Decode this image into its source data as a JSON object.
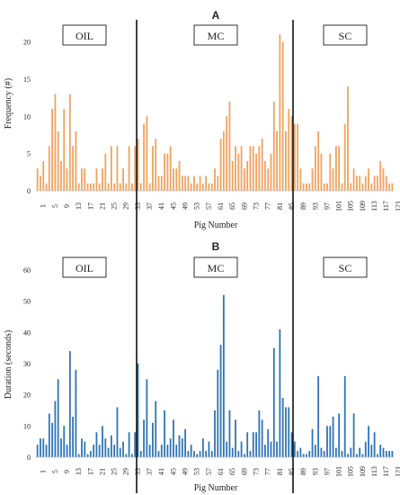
{
  "chart_data": [
    {
      "type": "bar",
      "panel_label": "A",
      "xlabel": "Pig Number",
      "ylabel": "Frequency (#)",
      "ylim": [
        0,
        22
      ],
      "yticks": [
        0,
        5,
        10,
        15,
        20
      ],
      "xtick_labels": [
        "1",
        "5",
        "9",
        "13",
        "17",
        "21",
        "25",
        "29",
        "33",
        "37",
        "41",
        "45",
        "49",
        "53",
        "57",
        "61",
        "65",
        "69",
        "73",
        "77",
        "81",
        "85",
        "89",
        "93",
        "97",
        "101",
        "105",
        "109",
        "113",
        "117",
        "121"
      ],
      "grid": false,
      "color": "#F0A35E",
      "group_labels": [
        "OIL",
        "MC",
        "SC"
      ],
      "x": [
        1,
        2,
        3,
        4,
        5,
        6,
        7,
        8,
        9,
        10,
        11,
        12,
        13,
        14,
        15,
        16,
        17,
        18,
        19,
        20,
        21,
        22,
        23,
        24,
        25,
        26,
        27,
        28,
        29,
        30,
        31,
        32,
        33,
        34,
        35,
        36,
        37,
        38,
        39,
        40,
        41,
        42,
        43,
        44,
        45,
        46,
        47,
        48,
        49,
        50,
        51,
        52,
        53,
        54,
        55,
        56,
        57,
        58,
        59,
        60,
        61,
        62,
        63,
        64,
        65,
        66,
        67,
        68,
        69,
        70,
        71,
        72,
        73,
        74,
        75,
        76,
        77,
        78,
        79,
        80,
        81,
        82,
        83,
        84,
        85,
        86,
        87,
        88,
        89,
        90,
        91,
        92,
        93,
        94,
        95,
        96,
        97,
        98,
        99,
        100,
        101,
        102,
        103,
        104,
        105,
        106,
        107,
        108,
        109,
        110,
        111,
        112,
        113,
        114,
        115,
        116,
        117,
        118,
        119,
        120,
        121
      ],
      "values": [
        3,
        2,
        4,
        1,
        6,
        11,
        13,
        8,
        4,
        11,
        3,
        13,
        6,
        8,
        1,
        3,
        3,
        1,
        1,
        1,
        3,
        1,
        3,
        5,
        1,
        6,
        1,
        6,
        1,
        3,
        1,
        6,
        1,
        6,
        7,
        1,
        9,
        10,
        1,
        6,
        7,
        2,
        2,
        5,
        5,
        6,
        3,
        3,
        4,
        2,
        2,
        2,
        1,
        2,
        1,
        2,
        1,
        2,
        1,
        1,
        3,
        2,
        7,
        8,
        10,
        12,
        4,
        6,
        5,
        6,
        3,
        4,
        6,
        6,
        5,
        6,
        7,
        4,
        3,
        5,
        12,
        8,
        21,
        20,
        8,
        11,
        10,
        9,
        9,
        3,
        1,
        1,
        1,
        3,
        6,
        8,
        5,
        1,
        1,
        5,
        3,
        6,
        6,
        1,
        9,
        14,
        1,
        3,
        2,
        2,
        1,
        2,
        3,
        1,
        2,
        2,
        4,
        3,
        2,
        1,
        1
      ]
    },
    {
      "type": "bar",
      "panel_label": "B",
      "xlabel": "Pig Number",
      "ylabel": "Duration (seconds)",
      "ylim": [
        0,
        60
      ],
      "yticks": [
        0,
        10,
        20,
        30,
        40,
        50,
        60
      ],
      "xtick_labels": [
        "1",
        "5",
        "9",
        "13",
        "17",
        "21",
        "25",
        "29",
        "33",
        "37",
        "41",
        "45",
        "49",
        "53",
        "57",
        "61",
        "65",
        "69",
        "73",
        "77",
        "81",
        "85",
        "89",
        "93",
        "97",
        "101",
        "105",
        "109",
        "113",
        "117",
        "121"
      ],
      "grid": false,
      "color": "#2E75B6",
      "group_labels": [
        "OIL",
        "MC",
        "SC"
      ],
      "x": [
        1,
        2,
        3,
        4,
        5,
        6,
        7,
        8,
        9,
        10,
        11,
        12,
        13,
        14,
        15,
        16,
        17,
        18,
        19,
        20,
        21,
        22,
        23,
        24,
        25,
        26,
        27,
        28,
        29,
        30,
        31,
        32,
        33,
        34,
        35,
        36,
        37,
        38,
        39,
        40,
        41,
        42,
        43,
        44,
        45,
        46,
        47,
        48,
        49,
        50,
        51,
        52,
        53,
        54,
        55,
        56,
        57,
        58,
        59,
        60,
        61,
        62,
        63,
        64,
        65,
        66,
        67,
        68,
        69,
        70,
        71,
        72,
        73,
        74,
        75,
        76,
        77,
        78,
        79,
        80,
        81,
        82,
        83,
        84,
        85,
        86,
        87,
        88,
        89,
        90,
        91,
        92,
        93,
        94,
        95,
        96,
        97,
        98,
        99,
        100,
        101,
        102,
        103,
        104,
        105,
        106,
        107,
        108,
        109,
        110,
        111,
        112,
        113,
        114,
        115,
        116,
        117,
        118,
        119,
        120,
        121
      ],
      "values": [
        4,
        6,
        6,
        4,
        14,
        11,
        18,
        25,
        6,
        10,
        4,
        34,
        13,
        28,
        1,
        6,
        5,
        1,
        2,
        4,
        8,
        4,
        10,
        6,
        3,
        7,
        4,
        16,
        3,
        5,
        1,
        8,
        1,
        8,
        30,
        2,
        12,
        25,
        4,
        11,
        18,
        2,
        4,
        15,
        4,
        6,
        12,
        4,
        7,
        6,
        9,
        2,
        4,
        2,
        1,
        2,
        6,
        2,
        5,
        2,
        15,
        28,
        36,
        52,
        5,
        15,
        3,
        12,
        2,
        5,
        1,
        8,
        2,
        8,
        8,
        15,
        12,
        4,
        9,
        5,
        35,
        5,
        41,
        19,
        16,
        16,
        8,
        5,
        2,
        3,
        1,
        1,
        2,
        9,
        4,
        26,
        3,
        2,
        10,
        10,
        13,
        3,
        14,
        2,
        26,
        1,
        3,
        14,
        1,
        3,
        1,
        5,
        10,
        4,
        8,
        1,
        4,
        3,
        2,
        2,
        2
      ]
    }
  ]
}
